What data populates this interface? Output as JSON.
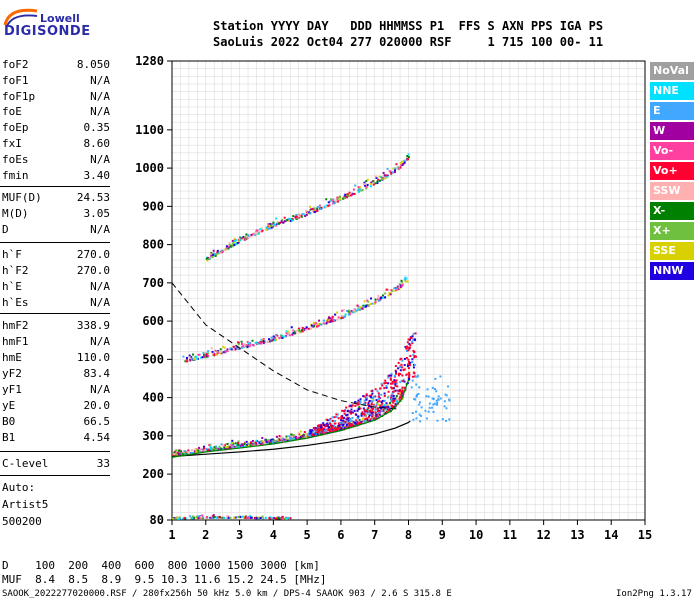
{
  "logo": {
    "top": "Lowell",
    "bottom": "DIGISONDE"
  },
  "header": {
    "line1": "Station YYYY DAY   DDD HHMMSS P1  FFS S AXN PPS IGA PS",
    "line2": "SaoLuis 2022 Oct04 277 020000 RSF     1 715 100 00- 11"
  },
  "params": [
    {
      "label": "foF2",
      "value": "8.050"
    },
    {
      "label": "foF1",
      "value": "N/A"
    },
    {
      "label": "foF1p",
      "value": "N/A"
    },
    {
      "label": "foE",
      "value": "N/A"
    },
    {
      "label": "foEp",
      "value": "0.35"
    },
    {
      "label": "fxI",
      "value": "8.60"
    },
    {
      "label": "foEs",
      "value": "N/A"
    },
    {
      "label": "fmin",
      "value": "3.40"
    },
    {
      "label": "MUF(D)",
      "value": "24.53"
    },
    {
      "label": "M(D)",
      "value": "3.05"
    },
    {
      "label": "D",
      "value": "N/A"
    },
    {
      "label": "h`F",
      "value": "270.0"
    },
    {
      "label": "h`F2",
      "value": "270.0"
    },
    {
      "label": "h`E",
      "value": "N/A"
    },
    {
      "label": "h`Es",
      "value": "N/A"
    },
    {
      "label": "hmF2",
      "value": "338.9"
    },
    {
      "label": "hmF1",
      "value": "N/A"
    },
    {
      "label": "hmE",
      "value": "110.0"
    },
    {
      "label": "yF2",
      "value": "83.4"
    },
    {
      "label": "yF1",
      "value": "N/A"
    },
    {
      "label": "yE",
      "value": "20.0"
    },
    {
      "label": "B0",
      "value": "66.5"
    },
    {
      "label": "B1",
      "value": "4.54"
    },
    {
      "label": "C-level",
      "value": "33"
    }
  ],
  "auto": {
    "label": "Auto:",
    "artist": "Artist5",
    "version": "500200"
  },
  "legend": [
    {
      "label": "NoVal",
      "color": "#a0a0a0"
    },
    {
      "label": "NNE",
      "color": "#00e0ff"
    },
    {
      "label": "E",
      "color": "#40a8ff"
    },
    {
      "label": "W",
      "color": "#a000a0"
    },
    {
      "label": "Vo-",
      "color": "#ff40a0"
    },
    {
      "label": "Vo+",
      "color": "#ff0030"
    },
    {
      "label": "SSW",
      "color": "#ffb0b0"
    },
    {
      "label": "X-",
      "color": "#008000"
    },
    {
      "label": "X+",
      "color": "#70c040"
    },
    {
      "label": "SSE",
      "color": "#d8d000"
    },
    {
      "label": "NNW",
      "color": "#2000e0"
    }
  ],
  "footer": {
    "d_row": "D    100  200  400  600  800 1000 1500 3000 [km]",
    "muf_row": "MUF  8.4  8.5  8.9  9.5 10.3 11.6 15.2 24.5 [MHz]",
    "file_info": "SAOOK_2022277020000.RSF / 280fx256h 50 kHz 5.0 km / DPS-4 SAAOK 903 / 2.6 S 315.8 E",
    "program": "Ion2Png 1.3.17"
  },
  "chart_data": {
    "type": "scatter",
    "title": "",
    "xlabel": "",
    "ylabel": "",
    "x_unit": "MHz",
    "y_unit": "km",
    "xlim": [
      1,
      15
    ],
    "ylim": [
      80,
      1280
    ],
    "xticks": [
      1,
      2,
      3,
      4,
      5,
      6,
      7,
      8,
      9,
      10,
      11,
      12,
      13,
      14,
      15
    ],
    "yticks": [
      80,
      200,
      300,
      400,
      500,
      600,
      700,
      800,
      900,
      1000,
      1100,
      1280
    ],
    "grid": true,
    "legend_position": "right",
    "traces": [
      {
        "name": "F2 O-trace",
        "points": [
          [
            1.0,
            248
          ],
          [
            2.0,
            262
          ],
          [
            3.0,
            272
          ],
          [
            4.0,
            283
          ],
          [
            5.0,
            298
          ],
          [
            6.0,
            318
          ],
          [
            7.0,
            345
          ],
          [
            7.5,
            370
          ],
          [
            7.8,
            400
          ],
          [
            8.0,
            450
          ]
        ]
      },
      {
        "name": "F2 second hop",
        "points": [
          [
            1.3,
            495
          ],
          [
            2.0,
            508
          ],
          [
            3.0,
            530
          ],
          [
            4.0,
            552
          ],
          [
            5.0,
            580
          ],
          [
            6.0,
            610
          ],
          [
            7.0,
            650
          ],
          [
            7.6,
            680
          ],
          [
            8.0,
            710
          ]
        ]
      },
      {
        "name": "F2 third hop",
        "points": [
          [
            2.0,
            760
          ],
          [
            3.0,
            810
          ],
          [
            4.0,
            850
          ],
          [
            5.0,
            880
          ],
          [
            6.0,
            920
          ],
          [
            7.0,
            960
          ],
          [
            7.7,
            1000
          ],
          [
            8.0,
            1030
          ]
        ]
      },
      {
        "name": "Es / low echoes",
        "points": [
          [
            1.0,
            85
          ],
          [
            2.0,
            88
          ],
          [
            3.0,
            88
          ],
          [
            4.0,
            86
          ],
          [
            4.5,
            85
          ]
        ]
      }
    ],
    "profile": [
      [
        1.0,
        246
      ],
      [
        2.0,
        252
      ],
      [
        3.0,
        258
      ],
      [
        4.0,
        265
      ],
      [
        5.0,
        275
      ],
      [
        6.0,
        288
      ],
      [
        7.0,
        305
      ],
      [
        7.6,
        320
      ],
      [
        8.0,
        335
      ],
      [
        8.05,
        339
      ]
    ],
    "model_dashed": [
      [
        1.0,
        700
      ],
      [
        2.0,
        590
      ],
      [
        3.0,
        530
      ],
      [
        4.0,
        470
      ],
      [
        5.0,
        420
      ],
      [
        6.0,
        392
      ],
      [
        7.0,
        375
      ],
      [
        7.7,
        370
      ]
    ]
  }
}
